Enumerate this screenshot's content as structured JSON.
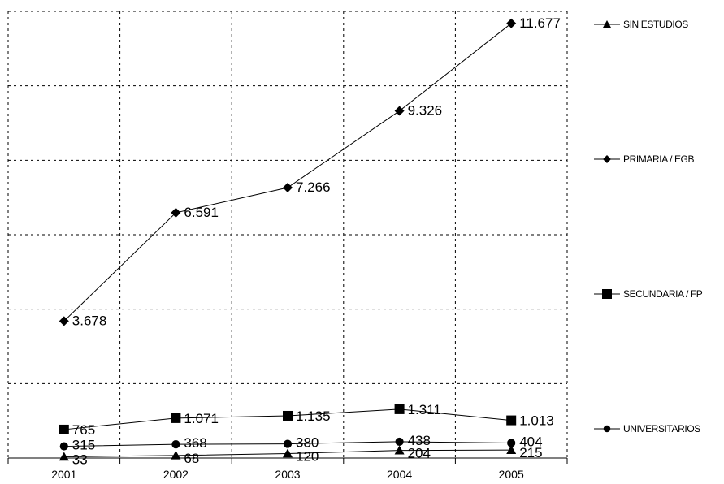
{
  "chart_data": {
    "type": "line",
    "categories": [
      "2001",
      "2002",
      "2003",
      "2004",
      "2005"
    ],
    "series": [
      {
        "name": "SIN ESTUDIOS",
        "marker": "triangle",
        "values": [
          33,
          68,
          120,
          204,
          215
        ],
        "labels": [
          "33",
          "68",
          "120",
          "204",
          "215"
        ]
      },
      {
        "name": "PRIMARIA / EGB",
        "marker": "diamond",
        "values": [
          3678,
          6591,
          7266,
          9326,
          11677
        ],
        "labels": [
          "3.678",
          "6.591",
          "7.266",
          "9.326",
          "11.677"
        ]
      },
      {
        "name": "SECUNDARIA / FP",
        "marker": "square",
        "values": [
          765,
          1071,
          1135,
          1311,
          1013
        ],
        "labels": [
          "765",
          "1.071",
          "1.135",
          "1.311",
          "1.013"
        ]
      },
      {
        "name": "UNIVERSITARIOS",
        "marker": "circle",
        "values": [
          315,
          368,
          380,
          438,
          404
        ],
        "labels": [
          "315",
          "368",
          "380",
          "438",
          "404"
        ]
      }
    ],
    "ylim": [
      0,
      12000
    ],
    "grid": true,
    "legend": "right",
    "colors": {
      "line": "#000000",
      "grid": "#000000",
      "background": "#ffffff"
    }
  }
}
